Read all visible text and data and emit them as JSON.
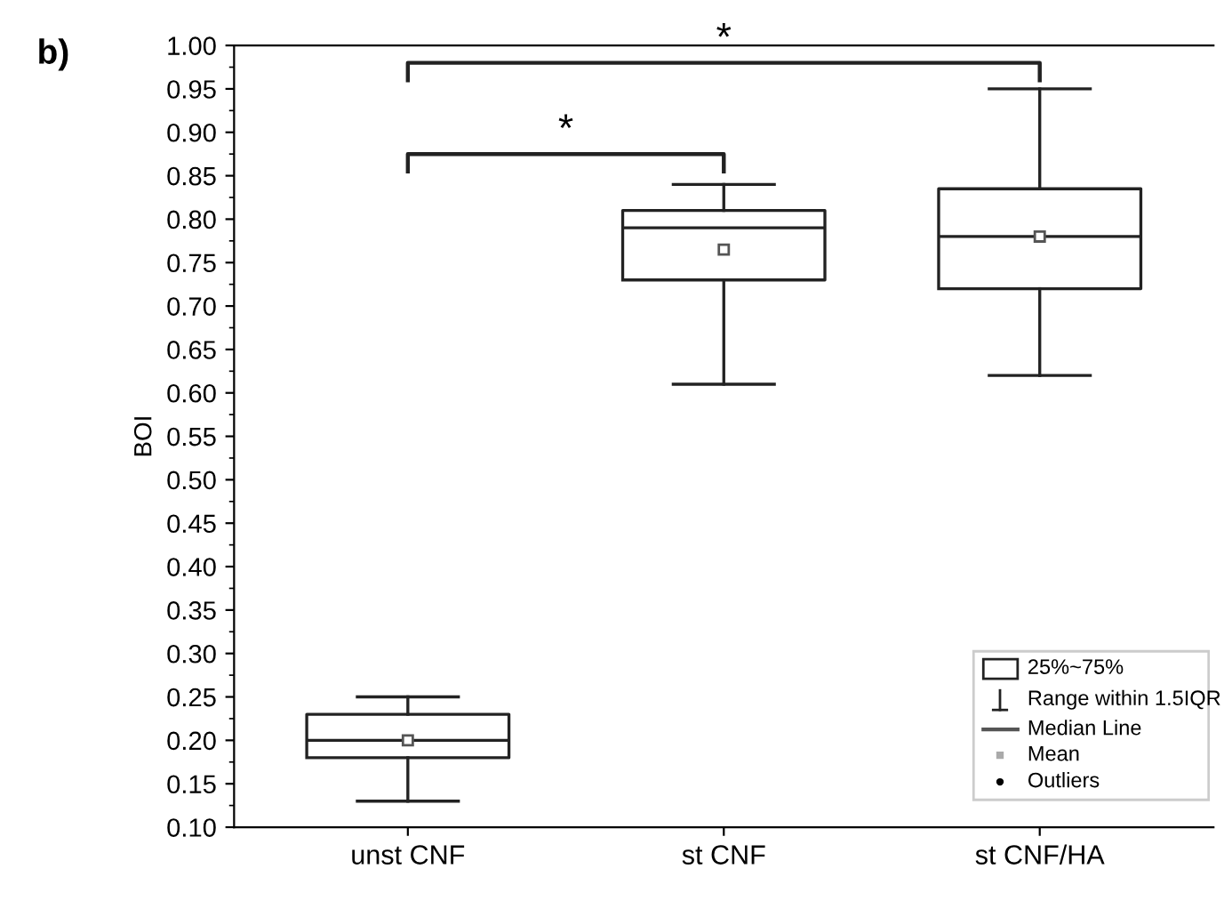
{
  "chart_data": {
    "type": "box",
    "ylabel": "BOI",
    "categories": [
      "unst CNF",
      "st CNF",
      "st CNF/HA"
    ],
    "boxes": [
      {
        "low": 0.13,
        "q1": 0.18,
        "median": 0.2,
        "q3": 0.23,
        "high": 0.25,
        "mean": 0.2
      },
      {
        "low": 0.61,
        "q1": 0.73,
        "median": 0.79,
        "q3": 0.81,
        "high": 0.84,
        "mean": 0.765
      },
      {
        "low": 0.62,
        "q1": 0.72,
        "median": 0.78,
        "q3": 0.835,
        "high": 0.95,
        "mean": 0.78
      }
    ],
    "ylim": [
      0.1,
      1.0
    ],
    "yticks": [
      {
        "value": 0.1,
        "label": "0.10"
      },
      {
        "value": 0.15,
        "label": "0.15"
      },
      {
        "value": 0.2,
        "label": "0.20"
      },
      {
        "value": 0.25,
        "label": "0.25"
      },
      {
        "value": 0.3,
        "label": "0.30"
      },
      {
        "value": 0.35,
        "label": "0.35"
      },
      {
        "value": 0.4,
        "label": "0.40"
      },
      {
        "value": 0.45,
        "label": "0.45"
      },
      {
        "value": 0.5,
        "label": "0.50"
      },
      {
        "value": 0.55,
        "label": "0.55"
      },
      {
        "value": 0.6,
        "label": "0.60"
      },
      {
        "value": 0.65,
        "label": "0.65"
      },
      {
        "value": 0.7,
        "label": "0.70"
      },
      {
        "value": 0.75,
        "label": "0.75"
      },
      {
        "value": 0.8,
        "label": "0.80"
      },
      {
        "value": 0.85,
        "label": "0.85"
      },
      {
        "value": 0.9,
        "label": "0.90"
      },
      {
        "value": 0.95,
        "label": "0.95"
      },
      {
        "value": 1.0,
        "label": "1.00"
      }
    ],
    "grid": false,
    "annotations": [
      "b)",
      "*",
      "*",
      "25%~75%",
      "Range within 1.5IQR",
      "Median Line",
      "Mean",
      "Outliers"
    ]
  }
}
